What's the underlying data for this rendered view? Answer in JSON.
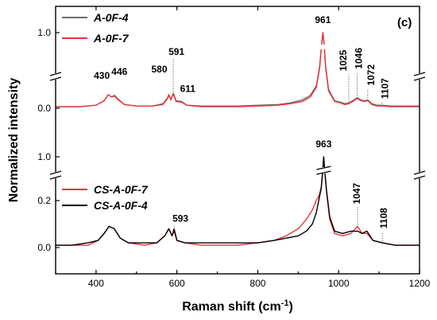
{
  "chart_data": {
    "type": "line",
    "panel_label": "(c)",
    "xlabel": "Raman shift (cm",
    "xlabel_sup": "-1",
    "xlabel_close": ")",
    "ylabel": "Normalized intensity",
    "xlim": [
      300,
      1200
    ],
    "x_ticks": [
      400,
      600,
      800,
      1000,
      1200
    ],
    "grid": false,
    "legend_position": "top-left",
    "panels": [
      {
        "name": "top",
        "y_ticks": [
          0.0,
          1.0
        ],
        "y_tick_labels": [
          "0.0",
          "1.0"
        ],
        "series": [
          {
            "name": "A-0F-4",
            "color": "#6e6e6e",
            "points": [
              [
                300,
                0.02
              ],
              [
                360,
                0.02
              ],
              [
                400,
                0.04
              ],
              [
                420,
                0.1
              ],
              [
                430,
                0.18
              ],
              [
                438,
                0.15
              ],
              [
                446,
                0.17
              ],
              [
                455,
                0.12
              ],
              [
                470,
                0.05
              ],
              [
                500,
                0.03
              ],
              [
                540,
                0.03
              ],
              [
                565,
                0.06
              ],
              [
                576,
                0.13
              ],
              [
                580,
                0.18
              ],
              [
                585,
                0.12
              ],
              [
                591,
                0.2
              ],
              [
                598,
                0.1
              ],
              [
                611,
                0.09
              ],
              [
                625,
                0.04
              ],
              [
                660,
                0.03
              ],
              [
                700,
                0.03
              ],
              [
                750,
                0.03
              ],
              [
                800,
                0.04
              ],
              [
                850,
                0.05
              ],
              [
                880,
                0.07
              ],
              [
                910,
                0.11
              ],
              [
                930,
                0.17
              ],
              [
                945,
                0.3
              ],
              [
                953,
                0.55
              ],
              [
                958,
                0.85
              ],
              [
                961,
                1.0
              ],
              [
                964,
                0.85
              ],
              [
                968,
                0.55
              ],
              [
                975,
                0.25
              ],
              [
                990,
                0.1
              ],
              [
                1005,
                0.08
              ],
              [
                1015,
                0.06
              ],
              [
                1025,
                0.07
              ],
              [
                1035,
                0.1
              ],
              [
                1046,
                0.14
              ],
              [
                1055,
                0.11
              ],
              [
                1065,
                0.1
              ],
              [
                1072,
                0.11
              ],
              [
                1082,
                0.06
              ],
              [
                1095,
                0.04
              ],
              [
                1107,
                0.04
              ],
              [
                1130,
                0.03
              ],
              [
                1160,
                0.03
              ],
              [
                1200,
                0.03
              ]
            ]
          },
          {
            "name": "A-0F-7",
            "color": "#e8343c",
            "points": [
              [
                300,
                0.02
              ],
              [
                360,
                0.02
              ],
              [
                400,
                0.04
              ],
              [
                420,
                0.1
              ],
              [
                430,
                0.18
              ],
              [
                438,
                0.15
              ],
              [
                446,
                0.16
              ],
              [
                455,
                0.11
              ],
              [
                470,
                0.05
              ],
              [
                500,
                0.03
              ],
              [
                540,
                0.03
              ],
              [
                565,
                0.05
              ],
              [
                576,
                0.12
              ],
              [
                580,
                0.17
              ],
              [
                585,
                0.11
              ],
              [
                591,
                0.19
              ],
              [
                598,
                0.09
              ],
              [
                611,
                0.08
              ],
              [
                625,
                0.04
              ],
              [
                660,
                0.02
              ],
              [
                700,
                0.02
              ],
              [
                750,
                0.02
              ],
              [
                800,
                0.03
              ],
              [
                850,
                0.04
              ],
              [
                880,
                0.06
              ],
              [
                910,
                0.09
              ],
              [
                930,
                0.15
              ],
              [
                945,
                0.28
              ],
              [
                953,
                0.53
              ],
              [
                958,
                0.84
              ],
              [
                961,
                1.0
              ],
              [
                964,
                0.84
              ],
              [
                968,
                0.53
              ],
              [
                975,
                0.23
              ],
              [
                990,
                0.09
              ],
              [
                1005,
                0.07
              ],
              [
                1015,
                0.05
              ],
              [
                1025,
                0.06
              ],
              [
                1035,
                0.09
              ],
              [
                1046,
                0.13
              ],
              [
                1055,
                0.1
              ],
              [
                1065,
                0.09
              ],
              [
                1072,
                0.1
              ],
              [
                1082,
                0.05
              ],
              [
                1095,
                0.03
              ],
              [
                1107,
                0.03
              ],
              [
                1130,
                0.02
              ],
              [
                1160,
                0.02
              ],
              [
                1200,
                0.02
              ]
            ]
          }
        ],
        "peak_labels": [
          "430",
          "446",
          "580",
          "591",
          "611",
          "961",
          "1025",
          "1046",
          "1072",
          "1107"
        ]
      },
      {
        "name": "bottom",
        "y_ticks": [
          0.0,
          0.2,
          1.0
        ],
        "y_tick_labels": [
          "0.0",
          "0.2",
          "1.0"
        ],
        "series": [
          {
            "name": "CS-A-0F-7",
            "color": "#e8343c",
            "points": [
              [
                300,
                0.01
              ],
              [
                340,
                0.01
              ],
              [
                380,
                0.01
              ],
              [
                405,
                0.03
              ],
              [
                420,
                0.06
              ],
              [
                432,
                0.09
              ],
              [
                445,
                0.08
              ],
              [
                460,
                0.04
              ],
              [
                480,
                0.02
              ],
              [
                520,
                0.01
              ],
              [
                550,
                0.02
              ],
              [
                570,
                0.05
              ],
              [
                580,
                0.08
              ],
              [
                588,
                0.05
              ],
              [
                593,
                0.07
              ],
              [
                600,
                0.03
              ],
              [
                620,
                0.02
              ],
              [
                660,
                0.01
              ],
              [
                700,
                0.01
              ],
              [
                750,
                0.01
              ],
              [
                800,
                0.02
              ],
              [
                840,
                0.03
              ],
              [
                870,
                0.05
              ],
              [
                900,
                0.08
              ],
              [
                920,
                0.12
              ],
              [
                935,
                0.16
              ],
              [
                945,
                0.21
              ],
              [
                952,
                0.3
              ],
              [
                957,
                0.45
              ],
              [
                960,
                0.7
              ],
              [
                963,
                1.0
              ],
              [
                966,
                0.7
              ],
              [
                970,
                0.35
              ],
              [
                978,
                0.12
              ],
              [
                990,
                0.06
              ],
              [
                1010,
                0.05
              ],
              [
                1030,
                0.06
              ],
              [
                1047,
                0.09
              ],
              [
                1058,
                0.06
              ],
              [
                1070,
                0.06
              ],
              [
                1085,
                0.03
              ],
              [
                1108,
                0.02
              ],
              [
                1140,
                0.01
              ],
              [
                1200,
                0.01
              ]
            ]
          },
          {
            "name": "CS-A-0F-4",
            "color": "#000000",
            "points": [
              [
                300,
                0.01
              ],
              [
                340,
                0.01
              ],
              [
                380,
                0.02
              ],
              [
                405,
                0.03
              ],
              [
                420,
                0.06
              ],
              [
                432,
                0.09
              ],
              [
                445,
                0.08
              ],
              [
                460,
                0.04
              ],
              [
                480,
                0.02
              ],
              [
                520,
                0.02
              ],
              [
                550,
                0.02
              ],
              [
                570,
                0.05
              ],
              [
                580,
                0.08
              ],
              [
                588,
                0.05
              ],
              [
                593,
                0.08
              ],
              [
                600,
                0.03
              ],
              [
                620,
                0.02
              ],
              [
                660,
                0.02
              ],
              [
                700,
                0.02
              ],
              [
                750,
                0.02
              ],
              [
                800,
                0.02
              ],
              [
                840,
                0.03
              ],
              [
                870,
                0.04
              ],
              [
                900,
                0.05
              ],
              [
                920,
                0.07
              ],
              [
                935,
                0.1
              ],
              [
                945,
                0.15
              ],
              [
                952,
                0.25
              ],
              [
                957,
                0.42
              ],
              [
                960,
                0.68
              ],
              [
                963,
                1.0
              ],
              [
                966,
                0.72
              ],
              [
                970,
                0.38
              ],
              [
                978,
                0.13
              ],
              [
                990,
                0.07
              ],
              [
                1010,
                0.06
              ],
              [
                1030,
                0.07
              ],
              [
                1047,
                0.07
              ],
              [
                1058,
                0.06
              ],
              [
                1070,
                0.07
              ],
              [
                1085,
                0.03
              ],
              [
                1108,
                0.02
              ],
              [
                1140,
                0.01
              ],
              [
                1200,
                0.01
              ]
            ]
          }
        ],
        "peak_labels": [
          "593",
          "963",
          "1047",
          "1108"
        ]
      }
    ]
  },
  "peak_positions": {
    "top": [
      430,
      446,
      580,
      591,
      611,
      961,
      1025,
      1046,
      1072,
      1107
    ],
    "bottom": [
      593,
      963,
      1047,
      1108
    ]
  }
}
